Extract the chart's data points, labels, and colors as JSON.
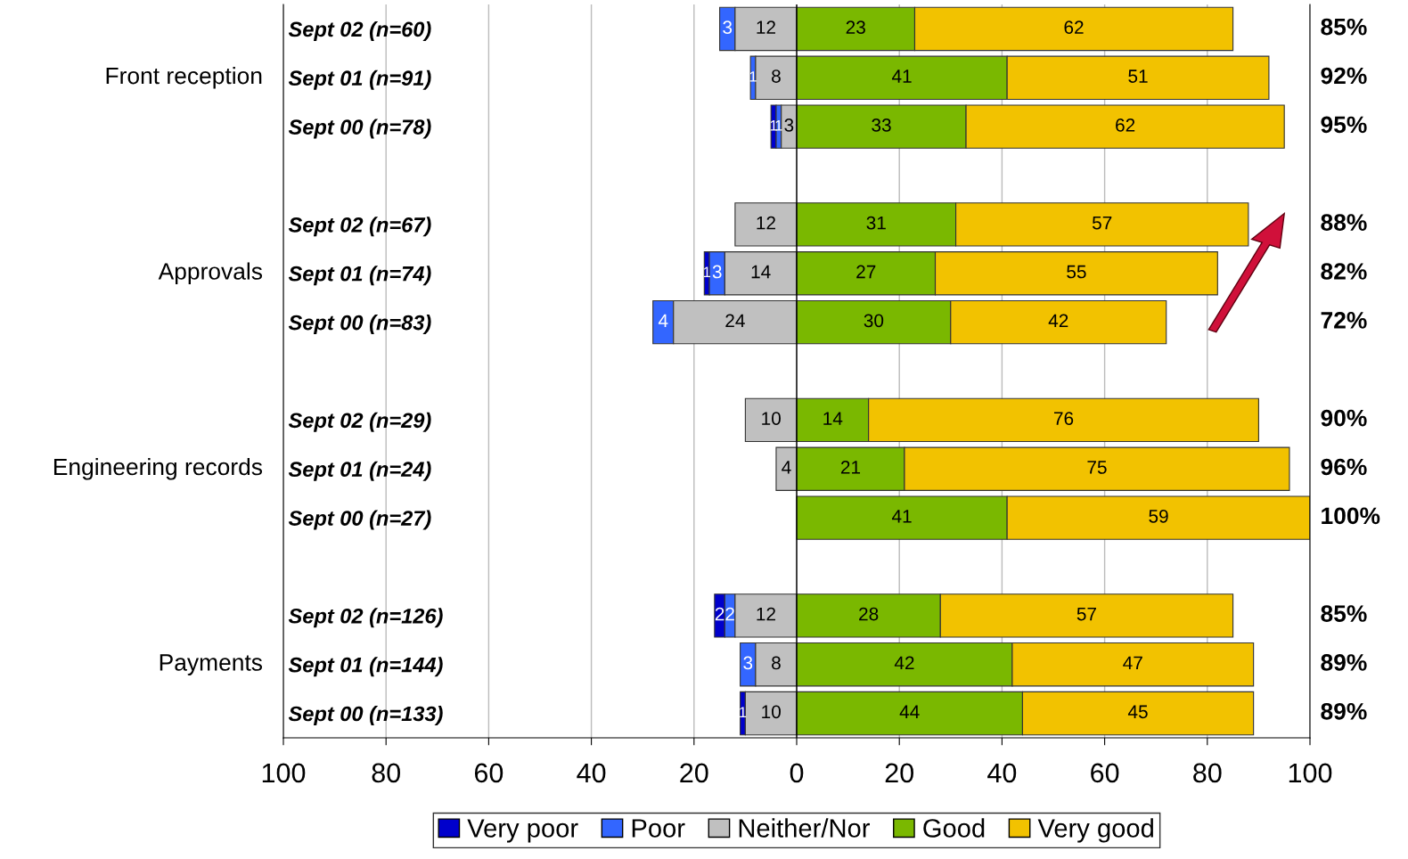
{
  "chart_data": {
    "type": "bar",
    "orientation": "horizontal",
    "data_labels": true,
    "categories": [
      "Sept 02 (n=60)",
      "Sept 01 (n=91)",
      "Sept 00 (n=78)",
      null,
      "Sept 02 (n=67)",
      "Sept 01 (n=74)",
      "Sept 00 (n=83)",
      null,
      "Sept 02 (n=29)",
      "Sept 01 (n=24)",
      "Sept 00 (n=27)",
      null,
      "Sept 02 (n=126)",
      "Sept 01 (n=144)",
      "Sept 00 (n=133)"
    ],
    "series": [
      {
        "name": "Very poor",
        "color": "#0000cc",
        "values": [
          null,
          null,
          1,
          null,
          null,
          1,
          null,
          null,
          null,
          null,
          null,
          null,
          2,
          null,
          1
        ],
        "base": [
          null,
          null,
          -5,
          null,
          null,
          -18,
          null,
          null,
          null,
          null,
          null,
          null,
          -16,
          null,
          -11
        ]
      },
      {
        "name": "Poor",
        "color": "#3366ff",
        "values": [
          3,
          1,
          1,
          null,
          null,
          3,
          4,
          null,
          null,
          null,
          null,
          null,
          2,
          3,
          null
        ],
        "base": [
          -15,
          -9,
          -4,
          null,
          null,
          -17,
          -28,
          null,
          null,
          null,
          null,
          null,
          -14,
          -11,
          null
        ]
      },
      {
        "name": "Neither/Nor",
        "color": "#c0c0c0",
        "values": [
          12,
          8,
          3,
          null,
          12,
          14,
          24,
          null,
          10,
          4,
          null,
          null,
          12,
          8,
          10
        ],
        "base": [
          -12,
          -8,
          -3,
          null,
          -12,
          -14,
          -24,
          null,
          -10,
          -4,
          null,
          null,
          -12,
          -8,
          -10
        ]
      },
      {
        "name": "Good",
        "color": "#7ab800",
        "values": [
          23,
          41,
          33,
          null,
          31,
          27,
          30,
          null,
          14,
          21,
          41,
          null,
          28,
          42,
          44
        ],
        "base": [
          0,
          0,
          0,
          null,
          0,
          0,
          0,
          null,
          0,
          0,
          0,
          null,
          0,
          0,
          0
        ]
      },
      {
        "name": "Very good",
        "color": "#f2c200",
        "values": [
          62,
          51,
          62,
          null,
          57,
          55,
          42,
          null,
          76,
          75,
          59,
          null,
          57,
          47,
          45
        ],
        "base": [
          23,
          41,
          33,
          null,
          31,
          27,
          30,
          null,
          14,
          21,
          41,
          null,
          28,
          42,
          44
        ]
      }
    ],
    "annotations": [
      "Front reception",
      "Approvals",
      "Engineering records",
      "Payments",
      "85%",
      "92%",
      "95%",
      "88%",
      "82%",
      "72%",
      "90%",
      "96%",
      "100%",
      "85%",
      "89%",
      "89%"
    ],
    "xlim": [
      -100,
      100
    ],
    "xticks": [
      {
        "value": -100,
        "label": "100"
      },
      {
        "value": -80,
        "label": "80"
      },
      {
        "value": -60,
        "label": "60"
      },
      {
        "value": -40,
        "label": "40"
      },
      {
        "value": -20,
        "label": "20"
      },
      0,
      20,
      40,
      60,
      80,
      100
    ],
    "grid": "x",
    "legend": "bottom"
  }
}
